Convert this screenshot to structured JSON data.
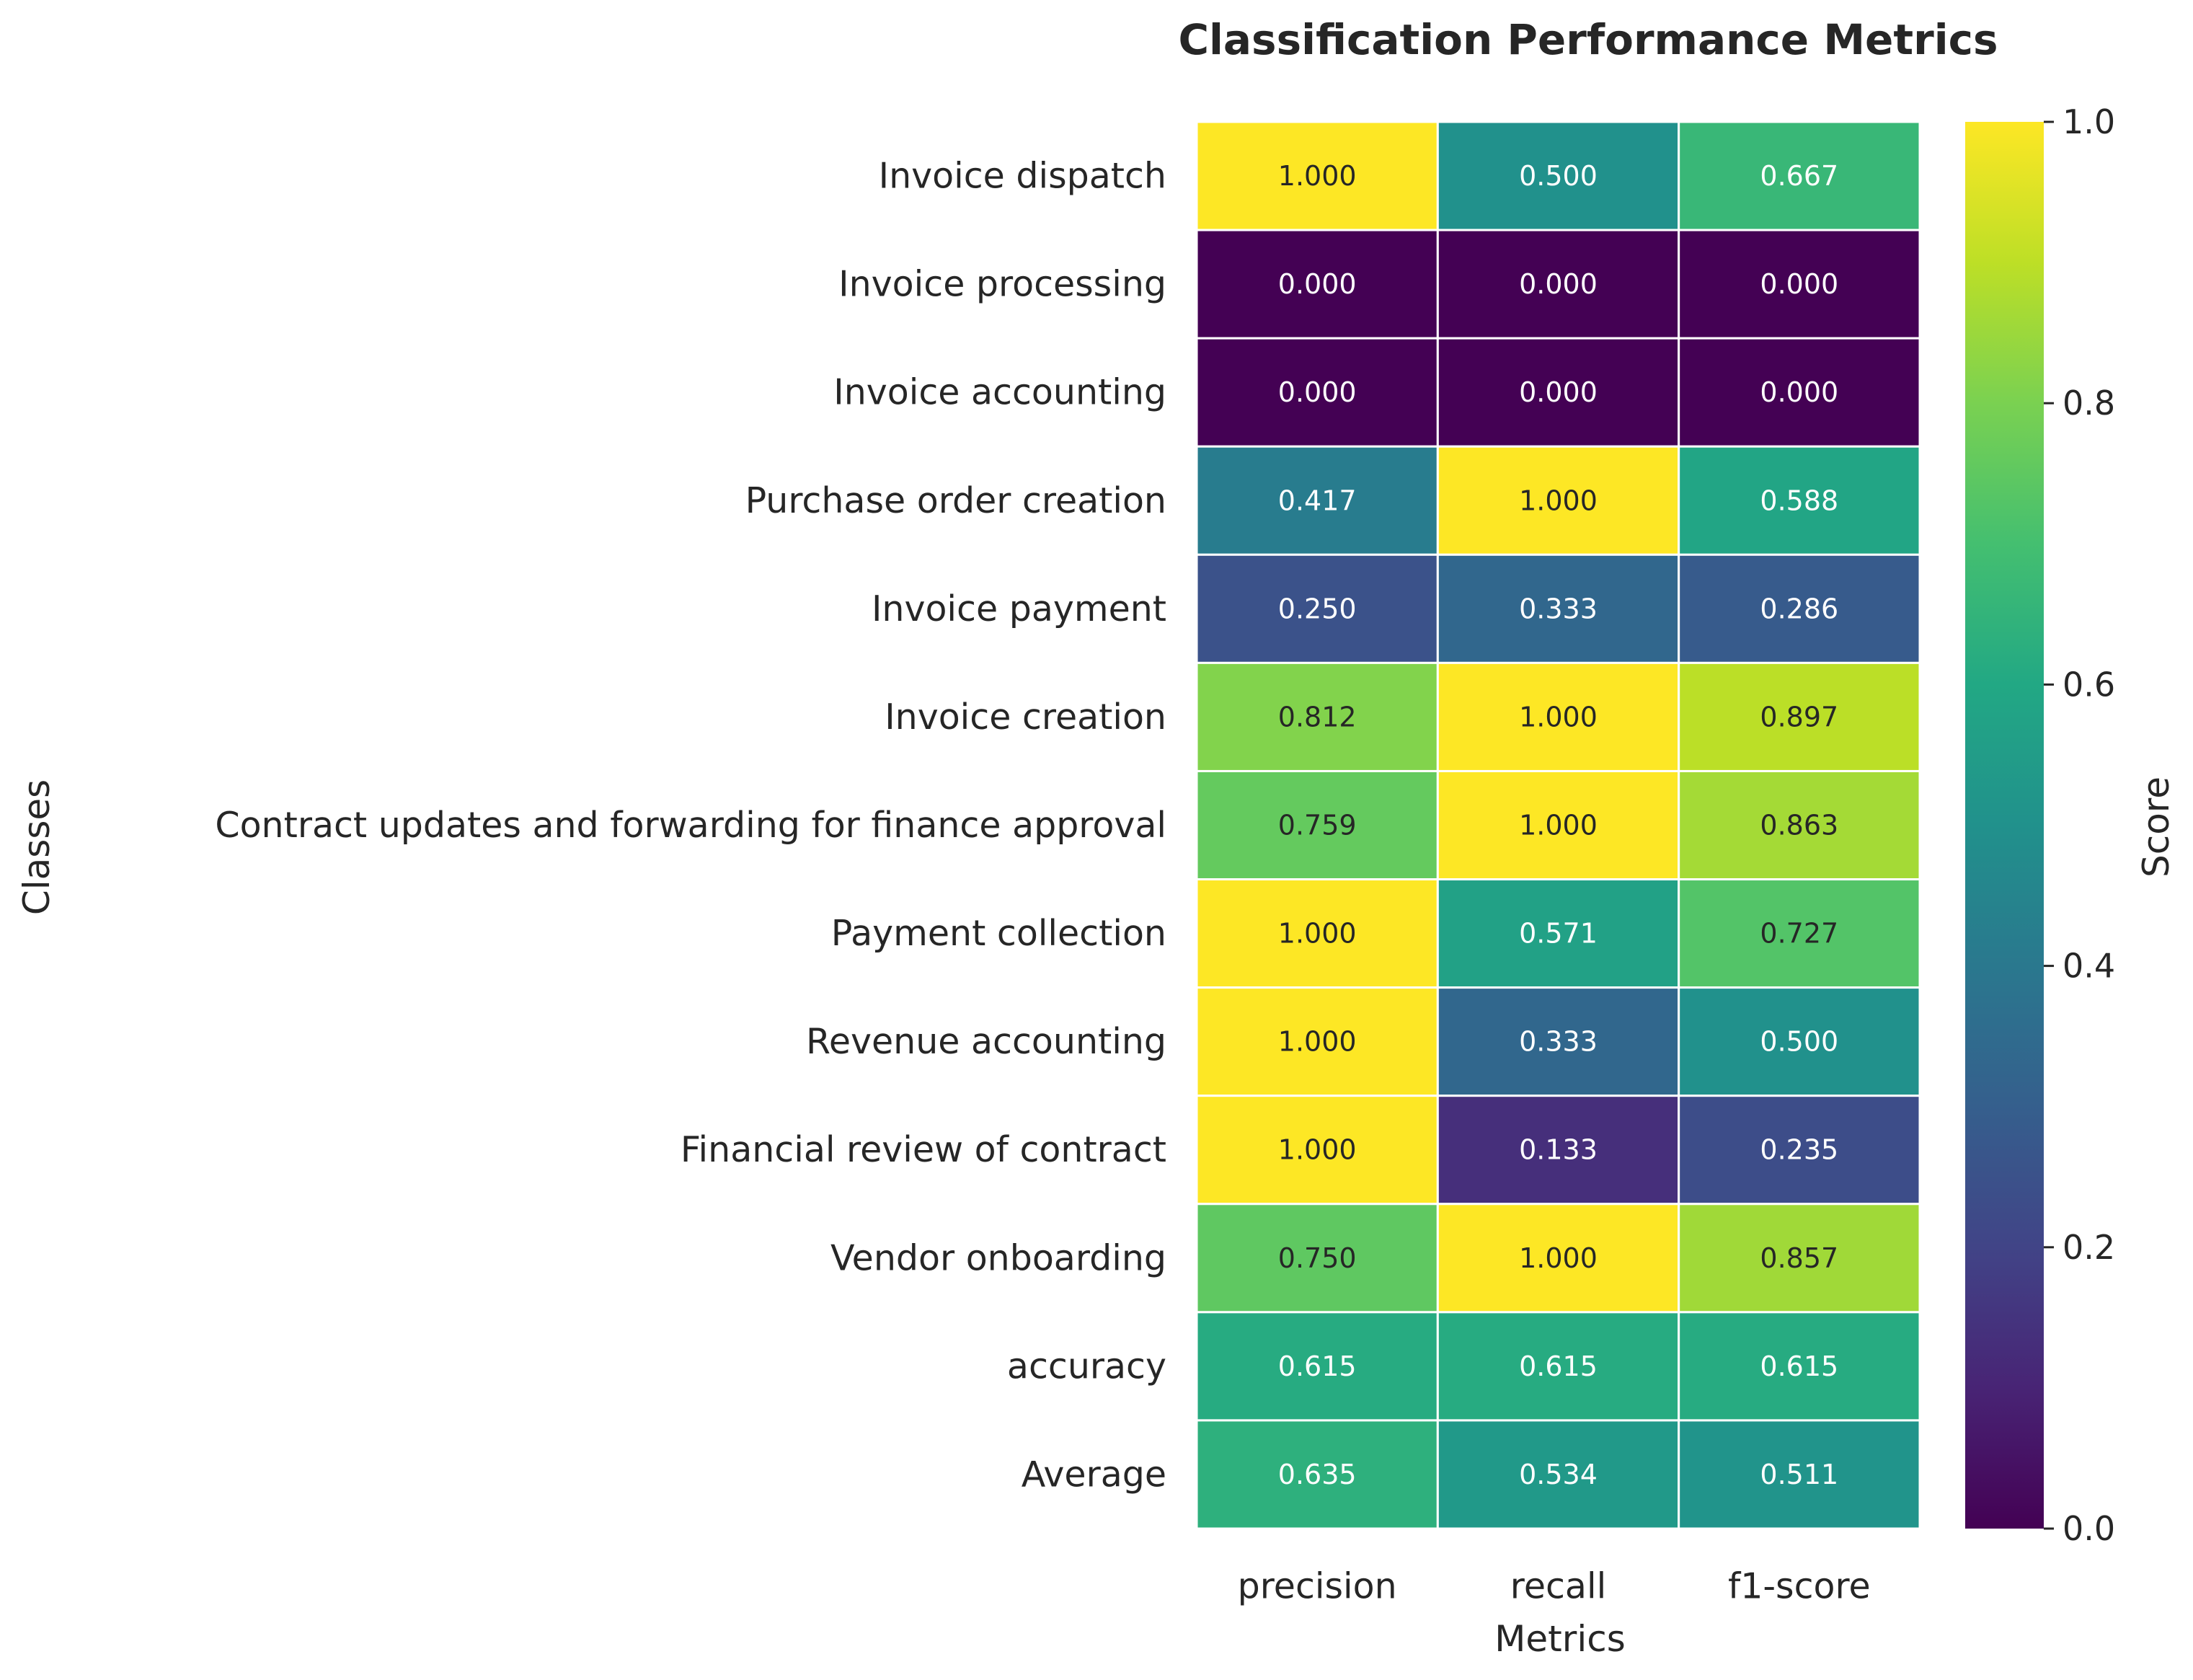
{
  "chart_data": {
    "type": "heatmap",
    "title": "Classification Performance Metrics",
    "xlabel": "Metrics",
    "ylabel": "Classes",
    "colorbar_label": "Score",
    "colormap": "viridis",
    "vmin": 0.0,
    "vmax": 1.0,
    "colorbar_ticks": [
      "0.0",
      "0.2",
      "0.4",
      "0.6",
      "0.8",
      "1.0"
    ],
    "x_categories": [
      "precision",
      "recall",
      "f1-score"
    ],
    "y_categories": [
      "Invoice dispatch",
      "Invoice processing",
      "Invoice accounting",
      "Purchase order creation",
      "Invoice payment",
      "Invoice creation",
      "Contract updates and forwarding for finance approval",
      "Payment collection",
      "Revenue accounting",
      "Financial review of contract",
      "Vendor onboarding",
      "accuracy",
      "Average"
    ],
    "values": [
      [
        1.0,
        0.5,
        0.667
      ],
      [
        0.0,
        0.0,
        0.0
      ],
      [
        0.0,
        0.0,
        0.0
      ],
      [
        0.417,
        1.0,
        0.588
      ],
      [
        0.25,
        0.333,
        0.286
      ],
      [
        0.812,
        1.0,
        0.897
      ],
      [
        0.759,
        1.0,
        0.863
      ],
      [
        1.0,
        0.571,
        0.727
      ],
      [
        1.0,
        0.333,
        0.5
      ],
      [
        1.0,
        0.133,
        0.235
      ],
      [
        0.75,
        1.0,
        0.857
      ],
      [
        0.615,
        0.615,
        0.615
      ],
      [
        0.635,
        0.534,
        0.511
      ]
    ],
    "value_labels": [
      [
        "1.000",
        "0.500",
        "0.667"
      ],
      [
        "0.000",
        "0.000",
        "0.000"
      ],
      [
        "0.000",
        "0.000",
        "0.000"
      ],
      [
        "0.417",
        "1.000",
        "0.588"
      ],
      [
        "0.250",
        "0.333",
        "0.286"
      ],
      [
        "0.812",
        "1.000",
        "0.897"
      ],
      [
        "0.759",
        "1.000",
        "0.863"
      ],
      [
        "1.000",
        "0.571",
        "0.727"
      ],
      [
        "1.000",
        "0.333",
        "0.500"
      ],
      [
        "1.000",
        "0.133",
        "0.235"
      ],
      [
        "0.750",
        "1.000",
        "0.857"
      ],
      [
        "0.615",
        "0.615",
        "0.615"
      ],
      [
        "0.635",
        "0.534",
        "0.511"
      ]
    ],
    "grid": false,
    "legend": "colorbar-right"
  }
}
